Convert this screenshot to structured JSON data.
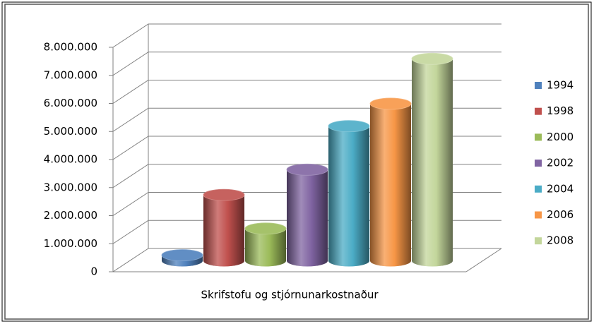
{
  "chart_data": {
    "type": "bar3d",
    "categories": [
      "Skrifstofu og stjórnunarkostnaður"
    ],
    "series": [
      {
        "name": "1994",
        "color": "#4f81bd",
        "values": [
          200000
        ]
      },
      {
        "name": "1998",
        "color": "#c0504d",
        "values": [
          2350000
        ]
      },
      {
        "name": "2000",
        "color": "#9bbb59",
        "values": [
          1150000
        ]
      },
      {
        "name": "2002",
        "color": "#8064a2",
        "values": [
          3250000
        ]
      },
      {
        "name": "2004",
        "color": "#4bacc6",
        "values": [
          4800000
        ]
      },
      {
        "name": "2006",
        "color": "#f79646",
        "values": [
          5600000
        ]
      },
      {
        "name": "2008",
        "color": "#c3d69b",
        "values": [
          7200000
        ]
      }
    ],
    "ylim": [
      0,
      8000000
    ],
    "yticks": [
      0,
      {
        "value": 1000000,
        "label": "1.000.000"
      },
      {
        "value": 2000000,
        "label": "2.000.000"
      },
      {
        "value": 3000000,
        "label": "3.000.000"
      },
      {
        "value": 4000000,
        "label": "4.000.000"
      },
      {
        "value": 5000000,
        "label": "5.000.000"
      },
      {
        "value": 6000000,
        "label": "6.000.000"
      },
      {
        "value": 7000000,
        "label": "7.000.000"
      },
      {
        "value": 8000000,
        "label": "8.000.000"
      }
    ],
    "grid": true,
    "legend": "right"
  }
}
